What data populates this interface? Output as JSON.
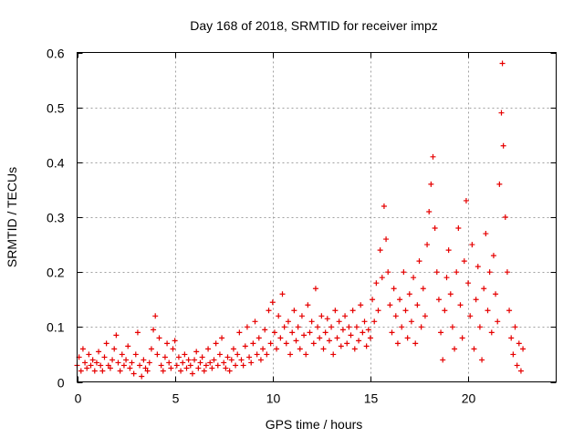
{
  "chart_data": {
    "type": "scatter",
    "title": "Day 168 of 2018, SRMTID for receiver impz",
    "xlabel": "GPS time / hours",
    "ylabel": "SRMTID / TECUs",
    "xlim": [
      0,
      24.5
    ],
    "ylim": [
      0,
      0.6
    ],
    "xticks": [
      0,
      5,
      10,
      15,
      20
    ],
    "yticks": [
      0,
      0.1,
      0.2,
      0.3,
      0.4,
      0.5,
      0.6
    ],
    "xtick_labels": [
      "0",
      "5",
      "10",
      "15",
      "20"
    ],
    "ytick_labels": [
      "0",
      "0.1",
      "0.2",
      "0.3",
      "0.4",
      "0.5",
      "0.6"
    ],
    "grid": true,
    "marker": "+",
    "color": "#e60000",
    "series": [
      {
        "name": "SRMTID",
        "points": [
          [
            0.0,
            0.03
          ],
          [
            0.1,
            0.045
          ],
          [
            0.2,
            0.02
          ],
          [
            0.3,
            0.06
          ],
          [
            0.4,
            0.035
          ],
          [
            0.5,
            0.025
          ],
          [
            0.6,
            0.05
          ],
          [
            0.7,
            0.03
          ],
          [
            0.8,
            0.04
          ],
          [
            0.9,
            0.02
          ],
          [
            1.0,
            0.035
          ],
          [
            1.1,
            0.055
          ],
          [
            1.2,
            0.03
          ],
          [
            1.3,
            0.02
          ],
          [
            1.4,
            0.045
          ],
          [
            1.5,
            0.07
          ],
          [
            1.6,
            0.03
          ],
          [
            1.7,
            0.025
          ],
          [
            1.8,
            0.04
          ],
          [
            1.9,
            0.06
          ],
          [
            2.0,
            0.085
          ],
          [
            2.1,
            0.035
          ],
          [
            2.2,
            0.02
          ],
          [
            2.3,
            0.05
          ],
          [
            2.4,
            0.03
          ],
          [
            2.5,
            0.04
          ],
          [
            2.6,
            0.065
          ],
          [
            2.7,
            0.025
          ],
          [
            2.8,
            0.035
          ],
          [
            2.9,
            0.015
          ],
          [
            3.0,
            0.05
          ],
          [
            3.1,
            0.09
          ],
          [
            3.2,
            0.03
          ],
          [
            3.3,
            0.01
          ],
          [
            3.4,
            0.04
          ],
          [
            3.5,
            0.025
          ],
          [
            3.6,
            0.02
          ],
          [
            3.7,
            0.035
          ],
          [
            3.8,
            0.06
          ],
          [
            3.9,
            0.095
          ],
          [
            4.0,
            0.12
          ],
          [
            4.1,
            0.05
          ],
          [
            4.2,
            0.08
          ],
          [
            4.3,
            0.03
          ],
          [
            4.4,
            0.02
          ],
          [
            4.5,
            0.045
          ],
          [
            4.6,
            0.07
          ],
          [
            4.7,
            0.035
          ],
          [
            4.8,
            0.025
          ],
          [
            4.9,
            0.06
          ],
          [
            5.0,
            0.075
          ],
          [
            5.1,
            0.03
          ],
          [
            5.2,
            0.045
          ],
          [
            5.3,
            0.02
          ],
          [
            5.4,
            0.035
          ],
          [
            5.5,
            0.05
          ],
          [
            5.6,
            0.025
          ],
          [
            5.7,
            0.04
          ],
          [
            5.8,
            0.03
          ],
          [
            5.9,
            0.015
          ],
          [
            6.0,
            0.04
          ],
          [
            6.1,
            0.055
          ],
          [
            6.2,
            0.025
          ],
          [
            6.3,
            0.035
          ],
          [
            6.4,
            0.045
          ],
          [
            6.5,
            0.02
          ],
          [
            6.6,
            0.03
          ],
          [
            6.7,
            0.06
          ],
          [
            6.8,
            0.035
          ],
          [
            6.9,
            0.025
          ],
          [
            7.0,
            0.04
          ],
          [
            7.1,
            0.07
          ],
          [
            7.2,
            0.03
          ],
          [
            7.3,
            0.05
          ],
          [
            7.4,
            0.08
          ],
          [
            7.5,
            0.035
          ],
          [
            7.6,
            0.025
          ],
          [
            7.7,
            0.045
          ],
          [
            7.8,
            0.02
          ],
          [
            7.9,
            0.04
          ],
          [
            8.0,
            0.06
          ],
          [
            8.1,
            0.03
          ],
          [
            8.2,
            0.05
          ],
          [
            8.3,
            0.09
          ],
          [
            8.4,
            0.04
          ],
          [
            8.5,
            0.03
          ],
          [
            8.6,
            0.065
          ],
          [
            8.7,
            0.1
          ],
          [
            8.8,
            0.045
          ],
          [
            8.9,
            0.035
          ],
          [
            9.0,
            0.07
          ],
          [
            9.1,
            0.11
          ],
          [
            9.2,
            0.05
          ],
          [
            9.3,
            0.08
          ],
          [
            9.4,
            0.04
          ],
          [
            9.5,
            0.06
          ],
          [
            9.6,
            0.095
          ],
          [
            9.7,
            0.05
          ],
          [
            9.8,
            0.13
          ],
          [
            9.9,
            0.07
          ],
          [
            10.0,
            0.145
          ],
          [
            10.1,
            0.09
          ],
          [
            10.2,
            0.06
          ],
          [
            10.3,
            0.12
          ],
          [
            10.4,
            0.08
          ],
          [
            10.5,
            0.16
          ],
          [
            10.6,
            0.1
          ],
          [
            10.7,
            0.07
          ],
          [
            10.8,
            0.11
          ],
          [
            10.9,
            0.05
          ],
          [
            11.0,
            0.09
          ],
          [
            11.1,
            0.13
          ],
          [
            11.2,
            0.075
          ],
          [
            11.3,
            0.1
          ],
          [
            11.4,
            0.06
          ],
          [
            11.5,
            0.12
          ],
          [
            11.6,
            0.085
          ],
          [
            11.7,
            0.05
          ],
          [
            11.8,
            0.14
          ],
          [
            11.9,
            0.09
          ],
          [
            12.0,
            0.11
          ],
          [
            12.1,
            0.07
          ],
          [
            12.2,
            0.17
          ],
          [
            12.3,
            0.1
          ],
          [
            12.4,
            0.08
          ],
          [
            12.5,
            0.12
          ],
          [
            12.6,
            0.06
          ],
          [
            12.7,
            0.09
          ],
          [
            12.8,
            0.115
          ],
          [
            12.9,
            0.075
          ],
          [
            13.0,
            0.1
          ],
          [
            13.1,
            0.05
          ],
          [
            13.2,
            0.13
          ],
          [
            13.3,
            0.08
          ],
          [
            13.4,
            0.11
          ],
          [
            13.5,
            0.065
          ],
          [
            13.6,
            0.095
          ],
          [
            13.7,
            0.12
          ],
          [
            13.8,
            0.07
          ],
          [
            13.9,
            0.1
          ],
          [
            14.0,
            0.085
          ],
          [
            14.1,
            0.13
          ],
          [
            14.2,
            0.06
          ],
          [
            14.3,
            0.1
          ],
          [
            14.4,
            0.075
          ],
          [
            14.5,
            0.14
          ],
          [
            14.6,
            0.09
          ],
          [
            14.7,
            0.11
          ],
          [
            14.8,
            0.065
          ],
          [
            14.9,
            0.095
          ],
          [
            15.0,
            0.08
          ],
          [
            15.1,
            0.15
          ],
          [
            15.2,
            0.11
          ],
          [
            15.3,
            0.18
          ],
          [
            15.4,
            0.13
          ],
          [
            15.5,
            0.24
          ],
          [
            15.6,
            0.19
          ],
          [
            15.7,
            0.32
          ],
          [
            15.8,
            0.26
          ],
          [
            15.9,
            0.2
          ],
          [
            16.0,
            0.14
          ],
          [
            16.1,
            0.09
          ],
          [
            16.2,
            0.17
          ],
          [
            16.3,
            0.12
          ],
          [
            16.4,
            0.07
          ],
          [
            16.5,
            0.15
          ],
          [
            16.6,
            0.1
          ],
          [
            16.7,
            0.2
          ],
          [
            16.8,
            0.13
          ],
          [
            16.9,
            0.08
          ],
          [
            17.0,
            0.16
          ],
          [
            17.1,
            0.11
          ],
          [
            17.2,
            0.19
          ],
          [
            17.3,
            0.07
          ],
          [
            17.4,
            0.14
          ],
          [
            17.5,
            0.22
          ],
          [
            17.6,
            0.1
          ],
          [
            17.7,
            0.17
          ],
          [
            17.8,
            0.12
          ],
          [
            17.9,
            0.25
          ],
          [
            18.0,
            0.31
          ],
          [
            18.1,
            0.36
          ],
          [
            18.2,
            0.41
          ],
          [
            18.3,
            0.28
          ],
          [
            18.4,
            0.2
          ],
          [
            18.5,
            0.15
          ],
          [
            18.6,
            0.09
          ],
          [
            18.7,
            0.04
          ],
          [
            18.8,
            0.13
          ],
          [
            18.9,
            0.19
          ],
          [
            19.0,
            0.24
          ],
          [
            19.1,
            0.16
          ],
          [
            19.2,
            0.1
          ],
          [
            19.3,
            0.06
          ],
          [
            19.4,
            0.2
          ],
          [
            19.5,
            0.28
          ],
          [
            19.6,
            0.14
          ],
          [
            19.7,
            0.08
          ],
          [
            19.8,
            0.22
          ],
          [
            19.9,
            0.33
          ],
          [
            20.0,
            0.18
          ],
          [
            20.1,
            0.12
          ],
          [
            20.2,
            0.25
          ],
          [
            20.3,
            0.06
          ],
          [
            20.4,
            0.15
          ],
          [
            20.5,
            0.21
          ],
          [
            20.6,
            0.1
          ],
          [
            20.7,
            0.04
          ],
          [
            20.8,
            0.17
          ],
          [
            20.9,
            0.27
          ],
          [
            21.0,
            0.13
          ],
          [
            21.1,
            0.2
          ],
          [
            21.2,
            0.09
          ],
          [
            21.3,
            0.23
          ],
          [
            21.4,
            0.16
          ],
          [
            21.5,
            0.11
          ],
          [
            21.6,
            0.36
          ],
          [
            21.7,
            0.49
          ],
          [
            21.75,
            0.58
          ],
          [
            21.8,
            0.43
          ],
          [
            21.9,
            0.3
          ],
          [
            22.0,
            0.2
          ],
          [
            22.1,
            0.13
          ],
          [
            22.2,
            0.08
          ],
          [
            22.3,
            0.05
          ],
          [
            22.4,
            0.1
          ],
          [
            22.5,
            0.03
          ],
          [
            22.6,
            0.07
          ],
          [
            22.7,
            0.02
          ],
          [
            22.8,
            0.06
          ]
        ]
      }
    ]
  }
}
